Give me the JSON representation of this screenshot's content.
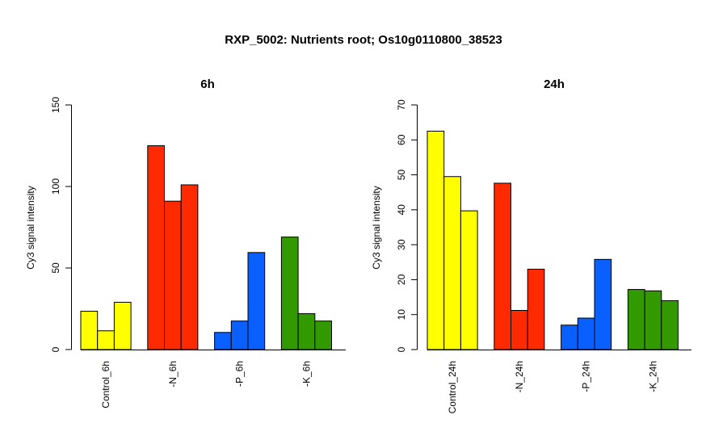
{
  "title": "RXP_5002: Nutrients root; Os10g0110800_38523",
  "chart_data": [
    {
      "type": "bar",
      "title": "6h",
      "ylabel": "Cy3 signal intensity",
      "ylim": [
        0,
        150
      ],
      "yticks": [
        0,
        50,
        100,
        150
      ],
      "groups": [
        {
          "label": "Control_6h",
          "color": "#ffff00",
          "values": [
            23.5,
            11.5,
            29
          ]
        },
        {
          "label": "-N_6h",
          "color": "#ff2a00",
          "values": [
            125,
            91,
            101
          ]
        },
        {
          "label": "-P_6h",
          "color": "#0a5fff",
          "values": [
            10.5,
            17.5,
            59.5
          ]
        },
        {
          "label": "-K_6h",
          "color": "#339900",
          "values": [
            69,
            22,
            17.5
          ]
        }
      ]
    },
    {
      "type": "bar",
      "title": "24h",
      "ylabel": "Cy3 signal intensity",
      "ylim": [
        0,
        70
      ],
      "yticks": [
        0,
        10,
        20,
        30,
        40,
        50,
        60,
        70
      ],
      "groups": [
        {
          "label": "Control_24h",
          "color": "#ffff00",
          "values": [
            62.5,
            49.5,
            39.7
          ]
        },
        {
          "label": "-N_24h",
          "color": "#ff2a00",
          "values": [
            47.6,
            11.2,
            23
          ]
        },
        {
          "label": "-P_24h",
          "color": "#0a5fff",
          "values": [
            7,
            9,
            25.8
          ]
        },
        {
          "label": "-K_24h",
          "color": "#339900",
          "values": [
            17.2,
            16.8,
            14
          ]
        }
      ]
    }
  ]
}
